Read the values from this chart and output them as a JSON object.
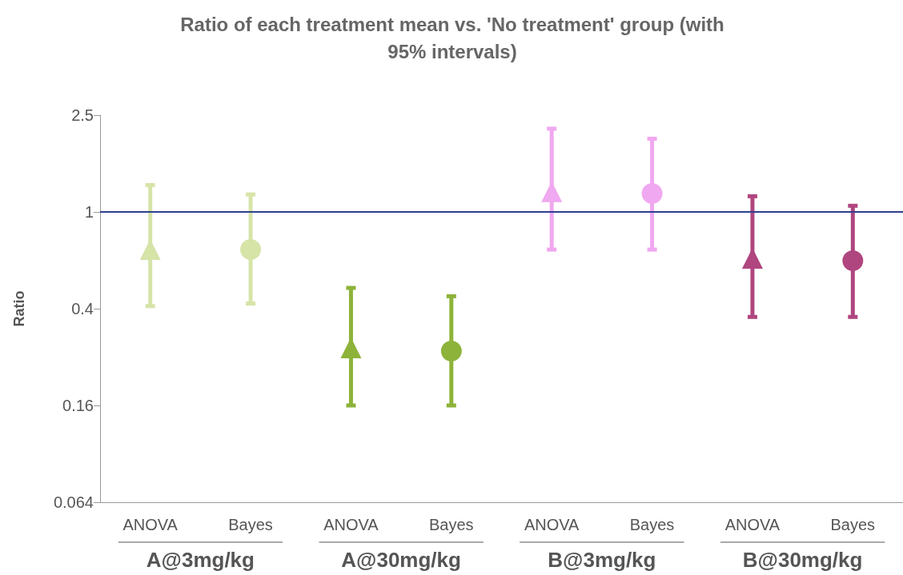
{
  "chart_data": {
    "type": "scatter",
    "title": "Ratio of each treatment mean vs. 'No treatment' group (with\n95% intervals)",
    "ylabel": "Ratio",
    "categories": [
      "ANOVA",
      "Bayes",
      "ANOVA",
      "Bayes",
      "ANOVA",
      "Bayes",
      "ANOVA",
      "Bayes"
    ],
    "series": [
      {
        "marker": "triangle",
        "values": [
          0.7,
          null,
          0.276,
          null,
          1.21,
          null,
          0.645,
          null
        ],
        "errors": [
          [
            0.41,
            1.29
          ],
          null,
          [
            0.16,
            0.487
          ],
          null,
          [
            0.7,
            2.2
          ],
          null,
          [
            0.37,
            1.16
          ],
          null
        ],
        "colors": [
          "#d6e4a8",
          null,
          "#8db33a",
          null,
          "#f0a8f0",
          null,
          "#b0467f",
          null
        ]
      },
      {
        "marker": "circle",
        "values": [
          null,
          0.7,
          null,
          0.268,
          null,
          1.19,
          null,
          0.63
        ],
        "errors": [
          null,
          [
            0.42,
            1.18
          ],
          null,
          [
            0.16,
            0.45
          ],
          null,
          [
            0.7,
            2.0
          ],
          null,
          [
            0.37,
            1.06
          ]
        ],
        "colors": [
          null,
          "#d6e4a8",
          null,
          "#8db33a",
          null,
          "#f0a8f0",
          null,
          "#b0467f"
        ]
      }
    ],
    "annotations": [
      "A@3mg/kg",
      "A@30mg/kg",
      "B@3mg/kg",
      "B@30mg/kg"
    ],
    "log": "y",
    "ylim": [
      0.064,
      2.5
    ],
    "yticks": [
      0.064,
      0.16,
      0.4,
      1,
      2.5
    ],
    "ref_lines": [
      {
        "axis": "y",
        "value": 1,
        "color": "#2e3f8f"
      }
    ],
    "grid": false
  }
}
